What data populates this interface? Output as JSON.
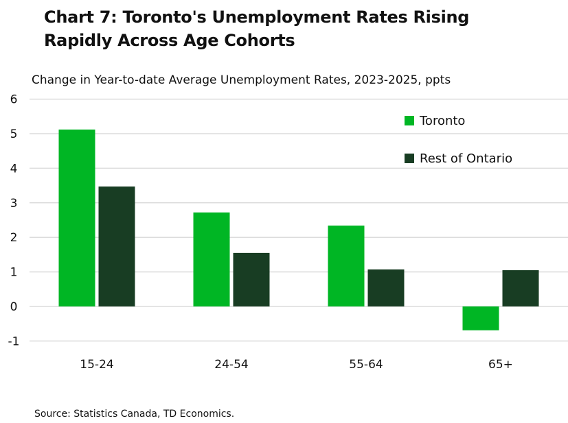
{
  "chart_data": {
    "type": "bar",
    "title": "Chart 7: Toronto's Unemployment Rates Rising Rapidly Across Age Cohorts",
    "subtitle": "Change in Year-to-date Average Unemployment Rates, 2023-2025, ppts",
    "xlabel": "",
    "ylabel": "",
    "categories": [
      "15-24",
      "24-54",
      "55-64",
      "65+"
    ],
    "series": [
      {
        "name": "Toronto",
        "color": "#00b624",
        "values": [
          5.12,
          2.72,
          2.34,
          -0.69
        ]
      },
      {
        "name": "Rest of Ontario",
        "color": "#183d23",
        "values": [
          3.47,
          1.55,
          1.07,
          1.05
        ]
      }
    ],
    "ylim": [
      -1,
      6
    ],
    "yticks": [
      6,
      5,
      4,
      3,
      2,
      1,
      0,
      -1
    ],
    "grid": true,
    "legend": "top-right",
    "source": "Source: Statistics Canada, TD Economics."
  }
}
